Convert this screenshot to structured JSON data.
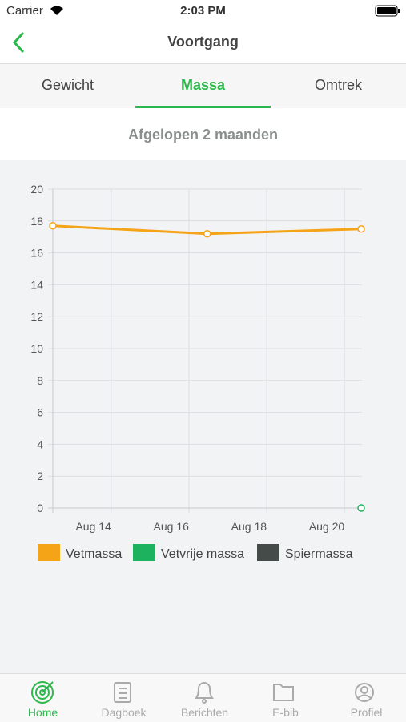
{
  "status_bar": {
    "carrier": "Carrier",
    "time": "2:03 PM"
  },
  "nav": {
    "title": "Voortgang"
  },
  "tabs": {
    "items": [
      "Gewicht",
      "Massa",
      "Omtrek"
    ],
    "active": 1
  },
  "period": "Afgelopen 2 maanden",
  "chart_data": {
    "type": "line",
    "xlim": [
      12.5,
      20.45
    ],
    "xticks": [
      {
        "value": 14,
        "label": "Aug 14"
      },
      {
        "value": 16,
        "label": "Aug 16"
      },
      {
        "value": 18,
        "label": "Aug 18"
      },
      {
        "value": 20,
        "label": "Aug 20"
      }
    ],
    "ylim": [
      0,
      20
    ],
    "yticks": [
      0,
      2,
      4,
      6,
      8,
      10,
      12,
      14,
      16,
      18,
      20
    ],
    "grid": true,
    "series": [
      {
        "name": "Vetmassa",
        "color": "#f5a317",
        "x": [
          12.5,
          16.47,
          20.43
        ],
        "values": [
          17.7,
          17.2,
          17.5
        ]
      },
      {
        "name": "Vetvrije massa",
        "color": "#1db35e",
        "x": [
          20.43
        ],
        "values": [
          0
        ]
      },
      {
        "name": "Spiermassa",
        "color": "#454b49",
        "x": [],
        "values": []
      }
    ]
  },
  "tab_bar": {
    "items": [
      "Home",
      "Dagboek",
      "Berichten",
      "E-bib",
      "Profiel"
    ],
    "active": 0
  }
}
